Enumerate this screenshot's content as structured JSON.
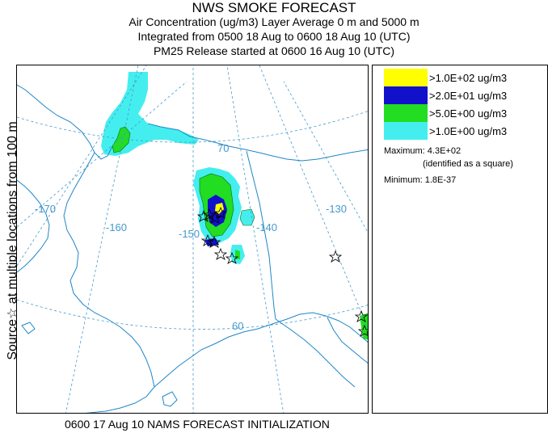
{
  "header": {
    "title": "NWS SMOKE FORECAST",
    "line2": "Air Concentration (ug/m3) Layer Average    0 m and  5000 m",
    "line3": "Integrated from 0500 18 Aug to 0600 18 Aug 10 (UTC)",
    "line4": "PM25 Release started at 0600 16 Aug 10 (UTC)"
  },
  "side_label": "Source☆ at multiple locations   from   100 m",
  "map": {
    "longitude_labels": [
      "-170",
      "-160",
      "-150",
      "-140",
      "-130"
    ],
    "latitude_labels": [
      "70",
      "60"
    ],
    "colors": {
      "cyan": "#44eeee",
      "green": "#22dd22",
      "blue": "#1111cc",
      "yellow": "#ffff00",
      "grid": "#4499cc",
      "coast": "#1f86c7"
    }
  },
  "legend": {
    "items": [
      {
        "label": ">1.0E+02 ug/m3",
        "color": "#ffff00"
      },
      {
        "label": ">2.0E+01 ug/m3",
        "color": "#1111cc"
      },
      {
        "label": ">5.0E+00 ug/m3",
        "color": "#22dd22"
      },
      {
        "label": ">1.0E+00 ug/m3",
        "color": "#44eeee"
      }
    ],
    "maximum": "Maximum: 4.3E+02",
    "maximum_note": "(identified as a square)",
    "minimum": "Minimum: 1.8E-37"
  },
  "footer": "0600 17 Aug 10 NAMS FORECAST INITIALIZATION"
}
